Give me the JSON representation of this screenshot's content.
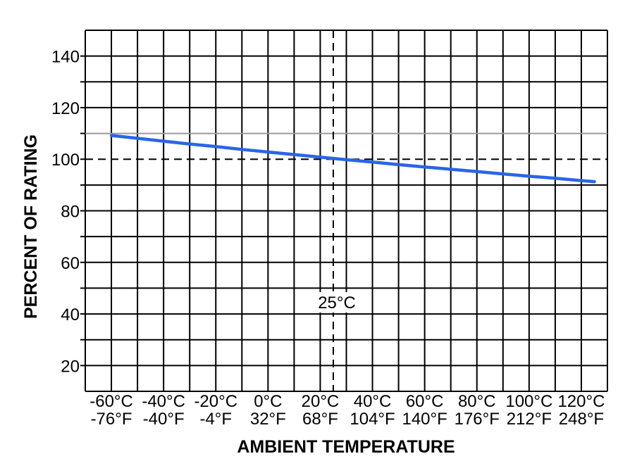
{
  "page": {
    "background": "#ffffff"
  },
  "chart_data": {
    "type": "line",
    "title": "",
    "xlabel": "AMBIENT TEMPERATURE",
    "ylabel": "PERCENT OF RATING",
    "xlim_celsius": [
      -70,
      130
    ],
    "ylim": [
      10,
      150
    ],
    "grid": {
      "x_step_celsius": 10,
      "y_step": 10,
      "color": "#000000",
      "highlight_line_y": 110,
      "highlight_line_color": "#9a9a9a"
    },
    "y_ticks": [
      {
        "value": 20,
        "label": "20"
      },
      {
        "value": 40,
        "label": "40"
      },
      {
        "value": 60,
        "label": "60"
      },
      {
        "value": 80,
        "label": "80"
      },
      {
        "value": 100,
        "label": "100"
      },
      {
        "value": 120,
        "label": "120"
      },
      {
        "value": 140,
        "label": "140"
      }
    ],
    "x_ticks": [
      {
        "celsius": -60,
        "label_c": "-60°C",
        "label_f": "-76°F"
      },
      {
        "celsius": -40,
        "label_c": "-40°C",
        "label_f": "-40°F"
      },
      {
        "celsius": -20,
        "label_c": "-20°C",
        "label_f": "-4°F"
      },
      {
        "celsius": 0,
        "label_c": "0°C",
        "label_f": "32°F"
      },
      {
        "celsius": 20,
        "label_c": "20°C",
        "label_f": "68°F"
      },
      {
        "celsius": 40,
        "label_c": "40°C",
        "label_f": "104°F"
      },
      {
        "celsius": 60,
        "label_c": "60°C",
        "label_f": "140°F"
      },
      {
        "celsius": 80,
        "label_c": "80°C",
        "label_f": "176°F"
      },
      {
        "celsius": 100,
        "label_c": "100°C",
        "label_f": "212°F"
      },
      {
        "celsius": 120,
        "label_c": "120°C",
        "label_f": "248°F"
      }
    ],
    "reference_lines": [
      {
        "axis": "y",
        "value": 100,
        "style": "dashed",
        "color": "#000000"
      },
      {
        "axis": "x",
        "value": 25,
        "style": "dashed",
        "color": "#000000"
      }
    ],
    "annotation": {
      "text": "25°C",
      "x_celsius": 25,
      "y_value": 45
    },
    "legend": {
      "visible": false
    },
    "series": [
      {
        "name": "temperature-derating-curve",
        "color": "#2965e8",
        "stroke_width": 4.5,
        "points": [
          [
            -60,
            109.2
          ],
          [
            -50,
            108.1
          ],
          [
            -40,
            107.0
          ],
          [
            -30,
            105.9
          ],
          [
            -20,
            104.9
          ],
          [
            -10,
            103.8
          ],
          [
            0,
            102.8
          ],
          [
            10,
            101.8
          ],
          [
            20,
            100.8
          ],
          [
            25,
            100.3
          ],
          [
            30,
            99.8
          ],
          [
            40,
            98.9
          ],
          [
            50,
            97.9
          ],
          [
            60,
            97.0
          ],
          [
            70,
            96.1
          ],
          [
            80,
            95.2
          ],
          [
            90,
            94.3
          ],
          [
            100,
            93.4
          ],
          [
            110,
            92.6
          ],
          [
            120,
            91.7
          ],
          [
            125,
            91.3
          ]
        ]
      }
    ]
  }
}
